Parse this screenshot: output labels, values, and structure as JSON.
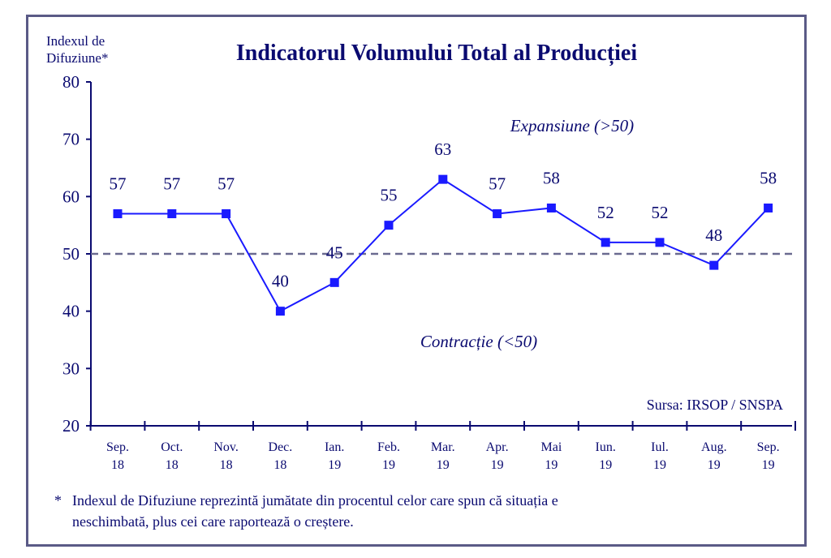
{
  "chart_data": {
    "type": "line",
    "title": "Indicatorul Volumului Total al Producției",
    "ylabel_line1": "Indexul de",
    "ylabel_line2": "Difuziune*",
    "ylim": [
      20,
      80
    ],
    "yticks": [
      20,
      30,
      40,
      50,
      60,
      70,
      80
    ],
    "categories": [
      [
        "Sep.",
        "18"
      ],
      [
        "Oct.",
        "18"
      ],
      [
        "Nov.",
        "18"
      ],
      [
        "Dec.",
        "18"
      ],
      [
        "Ian.",
        "19"
      ],
      [
        "Feb.",
        "19"
      ],
      [
        "Mar.",
        "19"
      ],
      [
        "Apr.",
        "19"
      ],
      [
        "Mai",
        "19"
      ],
      [
        "Iun.",
        "19"
      ],
      [
        "Iul.",
        "19"
      ],
      [
        "Aug.",
        "19"
      ],
      [
        "Sep.",
        "19"
      ]
    ],
    "values": [
      57,
      57,
      57,
      40,
      45,
      55,
      63,
      57,
      58,
      52,
      52,
      48,
      58
    ],
    "reference_line": 50,
    "annotations": {
      "expansion": "Expansiune (>50)",
      "contraction": "Contracție (<50)"
    },
    "source": "Sursa: IRSOP / SNSPA",
    "grid": false,
    "colors": {
      "series": "#1a1aff",
      "text": "#0a0a70",
      "reference": "#6a6a90",
      "frame": "#5a5a86"
    }
  },
  "footnote": {
    "star": "*",
    "line1": "Indexul de Difuziune reprezintă jumătate din procentul celor care spun că situația e",
    "line2": "neschimbată, plus cei care raportează o creștere."
  }
}
